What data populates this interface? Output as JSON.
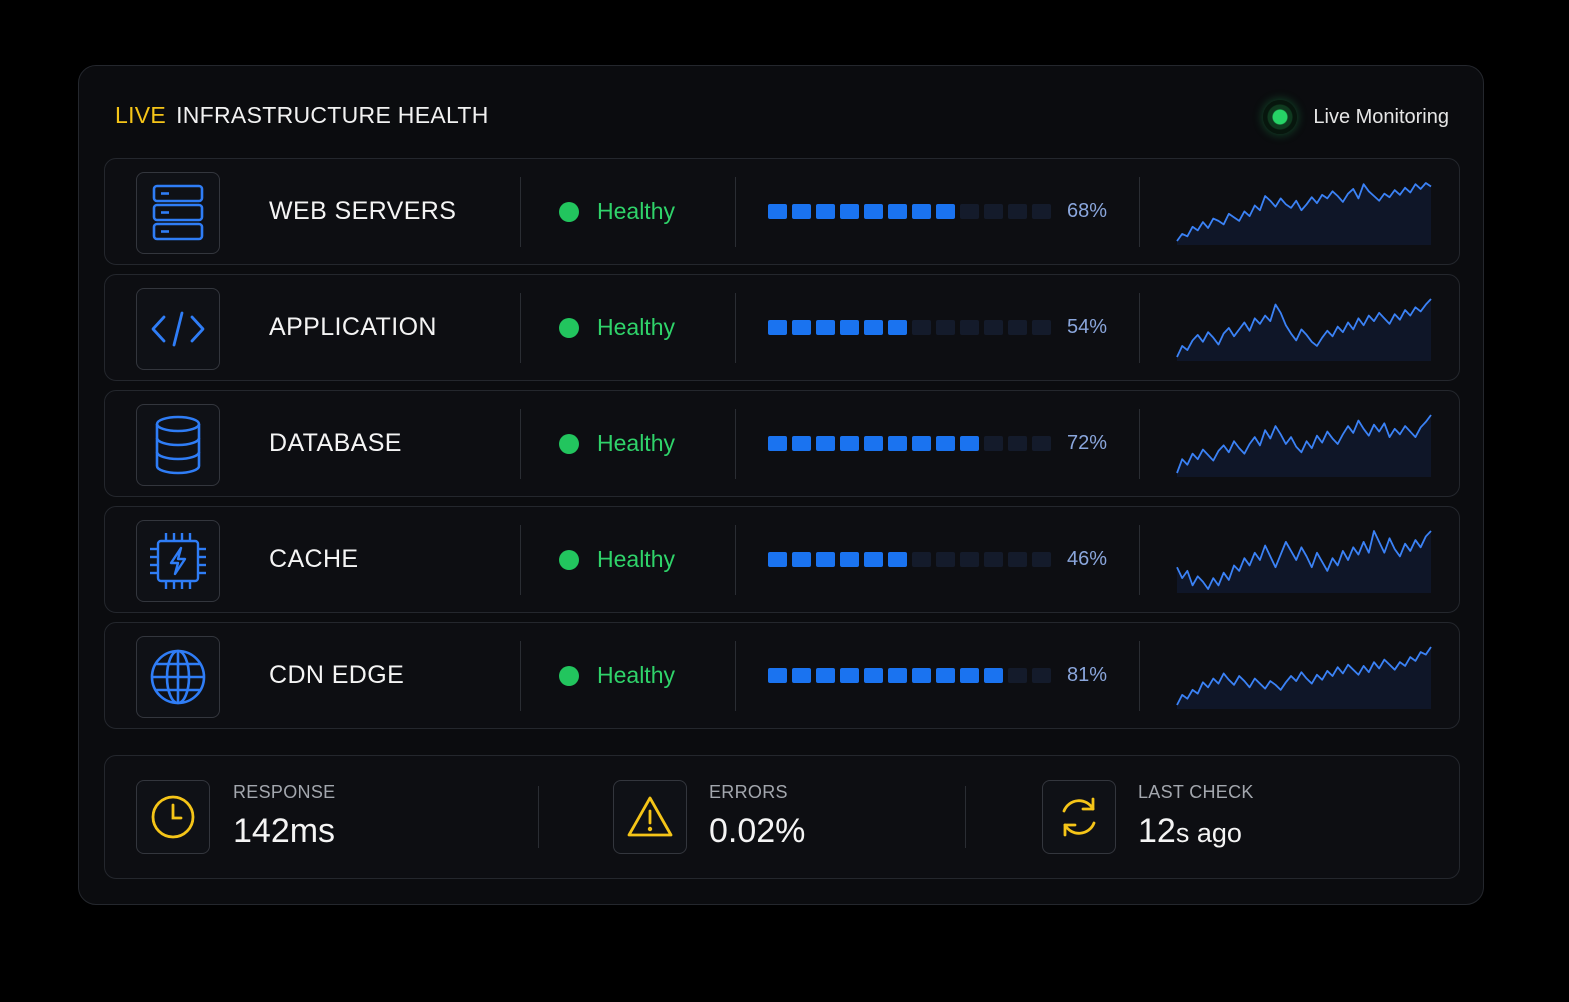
{
  "header": {
    "live_label": "LIVE",
    "title": "INFRASTRUCTURE HEALTH",
    "badge_label": "Live Monitoring"
  },
  "colors": {
    "accent_yellow": "#f5c518",
    "healthy_green": "#22c55e",
    "bar_blue": "#1a73f0",
    "spark_blue": "#3b82f6"
  },
  "services": [
    {
      "name": "WEB SERVERS",
      "icon": "server-stack-icon",
      "status": "Healthy",
      "load_fraction": 0.68,
      "load_label": "68%",
      "sparkline": [
        10,
        16,
        14,
        22,
        19,
        26,
        21,
        29,
        27,
        24,
        33,
        30,
        27,
        35,
        31,
        40,
        36,
        48,
        44,
        39,
        46,
        41,
        38,
        44,
        36,
        41,
        47,
        42,
        49,
        46,
        52,
        48,
        43,
        50,
        54,
        46,
        58,
        52,
        48,
        44,
        50,
        47,
        53,
        49,
        55,
        51,
        58,
        54,
        59,
        56
      ]
    },
    {
      "name": "APPLICATION",
      "icon": "code-brackets-icon",
      "status": "Healthy",
      "load_fraction": 0.54,
      "load_label": "54%",
      "sparkline": [
        10,
        18,
        15,
        22,
        26,
        21,
        28,
        24,
        19,
        27,
        31,
        25,
        30,
        35,
        29,
        38,
        34,
        40,
        36,
        48,
        42,
        33,
        27,
        22,
        30,
        26,
        21,
        18,
        24,
        29,
        25,
        32,
        28,
        35,
        30,
        38,
        33,
        40,
        36,
        42,
        38,
        34,
        41,
        37,
        44,
        40,
        46,
        43,
        48,
        52
      ]
    },
    {
      "name": "DATABASE",
      "icon": "database-icon",
      "status": "Healthy",
      "load_fraction": 0.72,
      "load_label": "72%",
      "sparkline": [
        10,
        20,
        16,
        24,
        20,
        27,
        23,
        19,
        26,
        30,
        25,
        33,
        28,
        24,
        31,
        36,
        30,
        41,
        35,
        44,
        38,
        31,
        36,
        29,
        25,
        33,
        28,
        37,
        32,
        40,
        35,
        31,
        38,
        44,
        39,
        48,
        42,
        37,
        45,
        40,
        46,
        36,
        42,
        38,
        44,
        40,
        36,
        43,
        47,
        52
      ]
    },
    {
      "name": "CACHE",
      "icon": "chip-lightning-icon",
      "status": "Healthy",
      "load_fraction": 0.46,
      "load_label": "46%",
      "sparkline": [
        30,
        24,
        28,
        20,
        25,
        22,
        18,
        24,
        20,
        27,
        23,
        31,
        28,
        35,
        31,
        38,
        34,
        42,
        36,
        30,
        37,
        44,
        39,
        34,
        41,
        36,
        30,
        38,
        33,
        28,
        35,
        31,
        39,
        34,
        41,
        37,
        44,
        38,
        50,
        44,
        38,
        46,
        40,
        36,
        43,
        39,
        45,
        41,
        47,
        50
      ]
    },
    {
      "name": "CDN EDGE",
      "icon": "globe-icon",
      "status": "Healthy",
      "load_fraction": 0.81,
      "load_label": "81%",
      "sparkline": [
        12,
        20,
        17,
        24,
        21,
        30,
        26,
        33,
        29,
        37,
        32,
        28,
        35,
        31,
        26,
        33,
        29,
        25,
        31,
        28,
        24,
        30,
        35,
        31,
        38,
        33,
        29,
        36,
        32,
        39,
        35,
        42,
        37,
        44,
        40,
        36,
        43,
        38,
        46,
        41,
        48,
        44,
        40,
        46,
        43,
        50,
        47,
        54,
        52,
        58
      ]
    }
  ],
  "footer": {
    "response": {
      "icon": "clock-icon",
      "label": "RESPONSE",
      "value": "142ms"
    },
    "errors": {
      "icon": "warning-triangle-icon",
      "label": "ERRORS",
      "value": "0.02%"
    },
    "last_check": {
      "icon": "refresh-icon",
      "label": "LAST CHECK",
      "value_number": "12",
      "value_suffix": "s ago"
    }
  }
}
